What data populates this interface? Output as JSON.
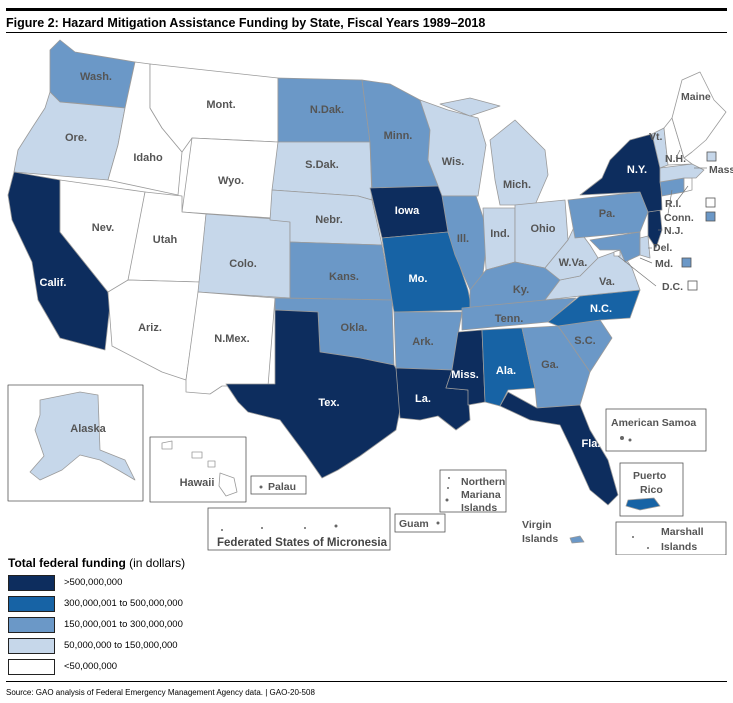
{
  "title": "Figure 2: Hazard Mitigation Assistance Funding by State, Fiscal Years 1989–2018",
  "colors": {
    "tier1": "#0d2d5e",
    "tier2": "#1763a5",
    "tier3": "#6b98c7",
    "tier4": "#c6d7ea",
    "tier5": "#ffffff",
    "border": "#9a9a9a",
    "label_dark": "#ffffff",
    "label_light": "#555555"
  },
  "states": [
    {
      "name": "Wash.",
      "tier": 3
    },
    {
      "name": "Ore.",
      "tier": 4
    },
    {
      "name": "Calif.",
      "tier": 1
    },
    {
      "name": "Idaho",
      "tier": 5
    },
    {
      "name": "Nev.",
      "tier": 5
    },
    {
      "name": "Mont.",
      "tier": 5
    },
    {
      "name": "Wyo.",
      "tier": 5
    },
    {
      "name": "Utah",
      "tier": 5
    },
    {
      "name": "Ariz.",
      "tier": 5
    },
    {
      "name": "Colo.",
      "tier": 4
    },
    {
      "name": "N.Mex.",
      "tier": 5
    },
    {
      "name": "N.Dak.",
      "tier": 3
    },
    {
      "name": "S.Dak.",
      "tier": 4
    },
    {
      "name": "Nebr.",
      "tier": 4
    },
    {
      "name": "Kans.",
      "tier": 3
    },
    {
      "name": "Okla.",
      "tier": 3
    },
    {
      "name": "Tex.",
      "tier": 1
    },
    {
      "name": "Minn.",
      "tier": 3
    },
    {
      "name": "Iowa",
      "tier": 1
    },
    {
      "name": "Mo.",
      "tier": 2
    },
    {
      "name": "Ark.",
      "tier": 3
    },
    {
      "name": "La.",
      "tier": 1
    },
    {
      "name": "Wis.",
      "tier": 4
    },
    {
      "name": "Ill.",
      "tier": 3
    },
    {
      "name": "Mich.",
      "tier": 4
    },
    {
      "name": "Ind.",
      "tier": 4
    },
    {
      "name": "Ohio",
      "tier": 4
    },
    {
      "name": "Ky.",
      "tier": 3
    },
    {
      "name": "Tenn.",
      "tier": 3
    },
    {
      "name": "Miss.",
      "tier": 1
    },
    {
      "name": "Ala.",
      "tier": 2
    },
    {
      "name": "Ga.",
      "tier": 3
    },
    {
      "name": "Fla.",
      "tier": 1
    },
    {
      "name": "S.C.",
      "tier": 3
    },
    {
      "name": "N.C.",
      "tier": 2
    },
    {
      "name": "Va.",
      "tier": 4
    },
    {
      "name": "W.Va.",
      "tier": 4
    },
    {
      "name": "Pa.",
      "tier": 3
    },
    {
      "name": "N.Y.",
      "tier": 1
    },
    {
      "name": "N.J.",
      "tier": 1
    },
    {
      "name": "Md.",
      "tier": 3
    },
    {
      "name": "Del.",
      "tier": 4
    },
    {
      "name": "D.C.",
      "tier": 5
    },
    {
      "name": "Conn.",
      "tier": 3
    },
    {
      "name": "R.I.",
      "tier": 5
    },
    {
      "name": "Mass.",
      "tier": 4
    },
    {
      "name": "Vt.",
      "tier": 4
    },
    {
      "name": "N.H.",
      "tier": 5
    },
    {
      "name": "Maine",
      "tier": 5
    },
    {
      "name": "Alaska",
      "tier": 4
    },
    {
      "name": "Hawaii",
      "tier": 5
    }
  ],
  "territories": [
    {
      "name": "American Samoa",
      "tier": 5
    },
    {
      "name": "Palau",
      "tier": 5
    },
    {
      "name": "Northern Mariana Islands",
      "tier": 5
    },
    {
      "name": "Puerto Rico",
      "tier": 2
    },
    {
      "name": "Guam",
      "tier": 5
    },
    {
      "name": "Virgin Islands",
      "tier": 3
    },
    {
      "name": "Marshall Islands",
      "tier": 5
    },
    {
      "name": "Federated States of Micronesia",
      "tier": 5
    }
  ],
  "map_labels": {
    "northern_mariana": [
      "Northern",
      "Mariana",
      "Islands"
    ],
    "puerto_rico": [
      "Puerto",
      "Rico"
    ],
    "virgin_islands": [
      "Virgin",
      "Islands"
    ],
    "marshall_islands": [
      "Marshall",
      "Islands"
    ]
  },
  "legend": {
    "title_bold": "Total federal funding",
    "title_rest": " (in dollars)",
    "items": [
      {
        "label": ">500,000,000",
        "tier": 1
      },
      {
        "label": "300,000,001 to 500,000,000",
        "tier": 2
      },
      {
        "label": "150,000,001 to 300,000,000",
        "tier": 3
      },
      {
        "label": "50,000,000 to 150,000,000",
        "tier": 4
      },
      {
        "label": "<50,000,000",
        "tier": 5
      }
    ]
  },
  "source": "Source: GAO analysis of Federal Emergency Management Agency data.  |  GAO-20-508"
}
